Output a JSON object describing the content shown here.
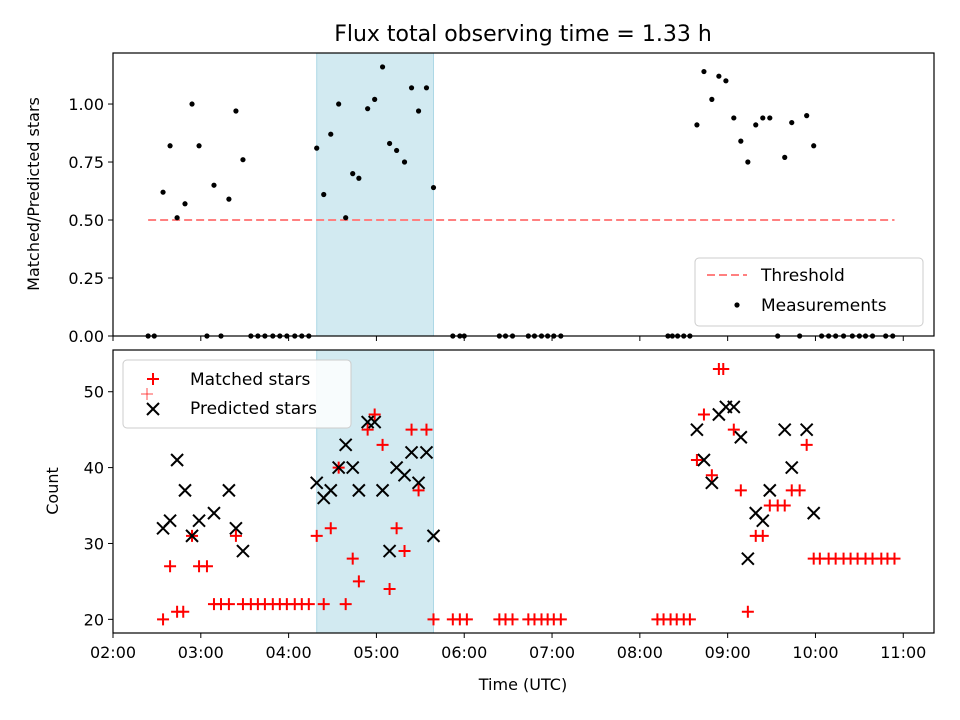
{
  "chart_data": [
    {
      "type": "scatter",
      "title": "Flux total observing time = 1.33 h",
      "xlabel": "",
      "ylabel": "Matched/Predicted stars",
      "xlim": [
        2.0,
        11.35
      ],
      "ylim": [
        0.0,
        1.22
      ],
      "yticks": [
        "0.00",
        "0.25",
        "0.50",
        "0.75",
        "1.00"
      ],
      "ytick_values": [
        0.0,
        0.25,
        0.5,
        0.75,
        1.0
      ],
      "shaded_span": [
        4.32,
        5.65
      ],
      "shade_color": "#add8e6",
      "threshold": {
        "name": "Threshold",
        "y": 0.5,
        "x": [
          2.4,
          10.9
        ],
        "color": "#ff8080"
      },
      "series": [
        {
          "name": "Measurements",
          "color": "#000000",
          "x": [
            2.4,
            2.47,
            2.57,
            2.65,
            2.73,
            2.82,
            2.9,
            2.98,
            3.07,
            3.15,
            3.23,
            3.32,
            3.4,
            3.48,
            3.57,
            3.65,
            3.73,
            3.82,
            3.9,
            3.98,
            4.07,
            4.15,
            4.23,
            4.32,
            4.4,
            4.48,
            4.57,
            4.65,
            4.73,
            4.8,
            4.9,
            4.98,
            5.07,
            5.15,
            5.23,
            5.32,
            5.4,
            5.48,
            5.57,
            5.65,
            5.87,
            5.95,
            6.0,
            6.4,
            6.47,
            6.55,
            6.73,
            6.8,
            6.88,
            6.95,
            7.02,
            7.1,
            8.32,
            8.37,
            8.43,
            8.5,
            8.57,
            8.65,
            8.73,
            8.82,
            8.9,
            8.98,
            9.07,
            9.15,
            9.23,
            9.32,
            9.4,
            9.48,
            9.57,
            9.65,
            9.73,
            9.82,
            9.9,
            9.98,
            10.07,
            10.15,
            10.23,
            10.32,
            10.42,
            10.5,
            10.57,
            10.65,
            10.8,
            10.88
          ],
          "y": [
            0.0,
            0.0,
            0.62,
            0.82,
            0.51,
            0.57,
            1.0,
            0.82,
            0.0,
            0.65,
            0.0,
            0.59,
            0.97,
            0.76,
            0.0,
            0.0,
            0.0,
            0.0,
            0.0,
            0.0,
            0.0,
            0.0,
            0.0,
            0.81,
            0.61,
            0.87,
            1.0,
            0.51,
            0.7,
            0.68,
            0.98,
            1.02,
            1.16,
            0.83,
            0.8,
            0.75,
            1.07,
            0.97,
            1.07,
            0.64,
            0.0,
            0.0,
            0.0,
            0.0,
            0.0,
            0.0,
            0.0,
            0.0,
            0.0,
            0.0,
            0.0,
            0.0,
            0.0,
            0.0,
            0.0,
            0.0,
            0.0,
            0.91,
            1.14,
            1.02,
            1.12,
            1.1,
            0.94,
            0.84,
            0.75,
            0.91,
            0.94,
            0.94,
            0.0,
            0.77,
            0.92,
            0.0,
            0.95,
            0.82,
            0.0,
            0.0,
            0.0,
            0.0,
            0.0,
            0.0,
            0.0,
            0.0,
            0.0,
            0.0
          ]
        }
      ],
      "legend": {
        "position": "lower right",
        "entries": [
          "Threshold",
          "Measurements"
        ]
      }
    },
    {
      "type": "scatter",
      "title": "",
      "xlabel": "Time (UTC)",
      "ylabel": "Count",
      "xlim": [
        2.0,
        11.35
      ],
      "ylim": [
        18.2,
        55.5
      ],
      "xticks": [
        "02:00",
        "03:00",
        "04:00",
        "05:00",
        "06:00",
        "07:00",
        "08:00",
        "09:00",
        "10:00",
        "11:00"
      ],
      "xtick_values": [
        2,
        3,
        4,
        5,
        6,
        7,
        8,
        9,
        10,
        11
      ],
      "yticks": [
        "20",
        "30",
        "40",
        "50"
      ],
      "ytick_values": [
        20,
        30,
        40,
        50
      ],
      "shaded_span": [
        4.32,
        5.65
      ],
      "shade_color": "#add8e6",
      "series": [
        {
          "name": "Matched stars",
          "marker": "+",
          "color": "#ff0000",
          "x": [
            2.57,
            2.65,
            2.73,
            2.8,
            2.9,
            2.98,
            3.07,
            3.15,
            3.23,
            3.32,
            3.4,
            3.48,
            3.57,
            3.65,
            3.73,
            3.82,
            3.9,
            3.98,
            4.07,
            4.15,
            4.23,
            4.32,
            4.4,
            4.48,
            4.57,
            4.65,
            4.73,
            4.8,
            4.9,
            4.98,
            5.07,
            5.15,
            5.23,
            5.32,
            5.4,
            5.48,
            5.57,
            5.65,
            5.87,
            5.95,
            6.03,
            6.4,
            6.47,
            6.55,
            6.73,
            6.8,
            6.88,
            6.95,
            7.02,
            7.1,
            8.2,
            8.27,
            8.35,
            8.42,
            8.5,
            8.57,
            8.65,
            8.73,
            8.82,
            8.9,
            8.95,
            9.07,
            9.15,
            9.23,
            9.32,
            9.4,
            9.48,
            9.57,
            9.65,
            9.73,
            9.82,
            9.9,
            9.98,
            10.05,
            10.15,
            10.23,
            10.32,
            10.4,
            10.48,
            10.57,
            10.65,
            10.75,
            10.82,
            10.9
          ],
          "y": [
            20,
            27,
            21,
            21,
            31,
            27,
            27,
            22,
            22,
            22,
            31,
            22,
            22,
            22,
            22,
            22,
            22,
            22,
            22,
            22,
            22,
            31,
            22,
            32,
            40,
            22,
            28,
            25,
            45,
            47,
            43,
            24,
            32,
            29,
            45,
            37,
            45,
            20,
            20,
            20,
            20,
            20,
            20,
            20,
            20,
            20,
            20,
            20,
            20,
            20,
            20,
            20,
            20,
            20,
            20,
            20,
            41,
            47,
            39,
            53,
            53,
            45,
            37,
            21,
            31,
            31,
            35,
            35,
            35,
            37,
            37,
            43,
            28,
            28,
            28,
            28,
            28,
            28,
            28,
            28,
            28,
            28,
            28,
            28
          ]
        },
        {
          "name": "Predicted stars",
          "marker": "x",
          "color": "#000000",
          "x": [
            2.57,
            2.65,
            2.73,
            2.82,
            2.9,
            2.98,
            3.15,
            3.32,
            3.4,
            3.48,
            4.32,
            4.4,
            4.48,
            4.57,
            4.65,
            4.73,
            4.8,
            4.9,
            4.98,
            5.07,
            5.15,
            5.23,
            5.32,
            5.4,
            5.48,
            5.57,
            5.65,
            8.65,
            8.73,
            8.82,
            8.9,
            8.98,
            9.07,
            9.15,
            9.23,
            9.32,
            9.4,
            9.48,
            9.65,
            9.73,
            9.9,
            9.98
          ],
          "y": [
            32,
            33,
            41,
            37,
            31,
            33,
            34,
            37,
            32,
            29,
            38,
            36,
            37,
            40,
            43,
            40,
            37,
            46,
            46,
            37,
            29,
            40,
            39,
            42,
            38,
            42,
            31,
            45,
            41,
            38,
            47,
            48,
            48,
            44,
            28,
            34,
            33,
            37,
            45,
            40,
            45,
            34
          ]
        }
      ],
      "legend": {
        "position": "upper left",
        "entries": [
          "Matched stars",
          "Predicted stars"
        ]
      }
    }
  ]
}
